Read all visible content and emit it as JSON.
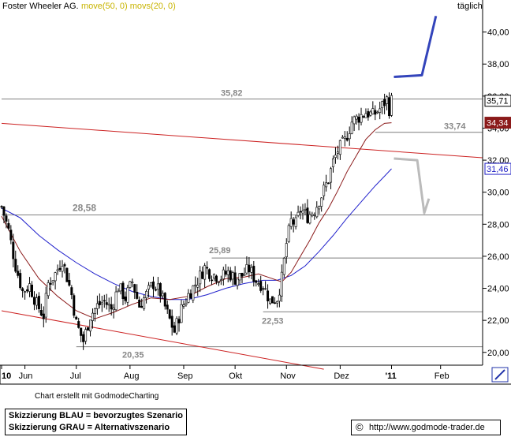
{
  "header": {
    "stock_name": "Foster Wheeler AG.",
    "indicators": "move(50, 0) movs(20, 0)",
    "interval": "täglich"
  },
  "credit": "Chart erstellt mit GodmodeCharting",
  "legend": {
    "blue": "Skizzierung BLAU = bevorzugtes Szenario",
    "gray": "Skizzierung GRAU = Alternativszenario"
  },
  "copyright": {
    "symbol": "©",
    "url": "http://www.godmode-trader.de"
  },
  "colors": {
    "candles": "#000000",
    "sma50": "#2222cc",
    "sma20": "#8b1a1a",
    "trendline": "#cc2222",
    "support": "#7f7f7f",
    "scenario_blue": "#3344bb",
    "scenario_gray": "#bbbbbb",
    "tag_price": "#000000",
    "tag_sma20": "#8b1a1a",
    "tag_sma50": "#1c1cc4"
  },
  "chart_data": {
    "type": "candlestick",
    "y_range": [
      19.2,
      42
    ],
    "y_ticks": [
      "20,00",
      "22,00",
      "24,00",
      "26,00",
      "28,00",
      "30,00",
      "32,00",
      "34,00",
      "36,00",
      "38,00",
      "40,00"
    ],
    "y_tick_values": [
      20,
      22,
      24,
      26,
      28,
      30,
      32,
      34,
      36,
      38,
      40
    ],
    "x_labels": [
      "10",
      "Jun",
      "Jul",
      "Aug",
      "Sep",
      "Okt",
      "Nov",
      "Dez",
      "'11",
      "Feb"
    ],
    "x_label_sessions": [
      0,
      10,
      32,
      55,
      78,
      100,
      122,
      145,
      167,
      188
    ],
    "sessions_total": 206,
    "price_tags": [
      {
        "text": "35,71",
        "value": 35.71,
        "role": "price"
      },
      {
        "text": "34,34",
        "value": 34.34,
        "role": "sma20"
      },
      {
        "text": "31,46",
        "value": 31.46,
        "role": "sma50"
      }
    ],
    "levels": [
      {
        "label": "35,82",
        "value": 35.82,
        "from_session": 0
      },
      {
        "label": "33,74",
        "value": 33.74,
        "from_session": 160
      },
      {
        "label": "28,58",
        "value": 28.58,
        "from_session": 0
      },
      {
        "label": "25,89",
        "value": 25.89,
        "from_session": 90
      },
      {
        "label": "22,53",
        "value": 22.53,
        "from_session": 112
      },
      {
        "label": "20,35",
        "value": 20.35,
        "from_session": 32
      }
    ],
    "trendlines": [
      {
        "name": "upper",
        "points": [
          [
            0,
            34.3
          ],
          [
            206,
            32.15
          ]
        ]
      },
      {
        "name": "lower",
        "points": [
          [
            0,
            22.6
          ],
          [
            138,
            18.95
          ]
        ]
      }
    ],
    "scenario_blue": [
      [
        168,
        37.2
      ],
      [
        180,
        37.3
      ],
      [
        186,
        41.0
      ]
    ],
    "scenario_gray": [
      [
        168,
        32.1
      ],
      [
        178,
        32.0
      ],
      [
        181,
        28.7
      ],
      [
        183,
        29.6
      ]
    ],
    "close_path": [
      [
        0,
        29.1
      ],
      [
        3,
        27.6
      ],
      [
        6,
        25.4
      ],
      [
        9,
        23.8
      ],
      [
        12,
        24.2
      ],
      [
        15,
        23.0
      ],
      [
        18,
        22.3
      ],
      [
        20,
        24.3
      ],
      [
        23,
        24.9
      ],
      [
        26,
        25.8
      ],
      [
        28,
        24.7
      ],
      [
        30,
        23.6
      ],
      [
        32,
        21.8
      ],
      [
        35,
        20.7
      ],
      [
        38,
        22.3
      ],
      [
        41,
        22.9
      ],
      [
        44,
        23.2
      ],
      [
        47,
        22.7
      ],
      [
        50,
        24.1
      ],
      [
        53,
        23.4
      ],
      [
        56,
        24.4
      ],
      [
        59,
        22.9
      ],
      [
        62,
        23.6
      ],
      [
        65,
        24.3
      ],
      [
        68,
        23.7
      ],
      [
        71,
        22.4
      ],
      [
        74,
        21.3
      ],
      [
        77,
        22.7
      ],
      [
        80,
        23.6
      ],
      [
        84,
        24.5
      ],
      [
        87,
        25.3
      ],
      [
        90,
        24.9
      ],
      [
        94,
        24.7
      ],
      [
        97,
        25.0
      ],
      [
        100,
        24.6
      ],
      [
        103,
        24.8
      ],
      [
        106,
        25.2
      ],
      [
        109,
        24.5
      ],
      [
        112,
        24.2
      ],
      [
        115,
        23.2
      ],
      [
        118,
        23.4
      ],
      [
        120,
        24.6
      ],
      [
        122,
        26.8
      ],
      [
        124,
        28.2
      ],
      [
        126,
        28.0
      ],
      [
        128,
        28.9
      ],
      [
        131,
        28.5
      ],
      [
        134,
        28.9
      ],
      [
        137,
        29.8
      ],
      [
        140,
        30.8
      ],
      [
        142,
        31.9
      ],
      [
        144,
        32.6
      ],
      [
        147,
        33.2
      ],
      [
        150,
        34.4
      ],
      [
        153,
        34.7
      ],
      [
        156,
        35.0
      ],
      [
        159,
        34.8
      ],
      [
        162,
        35.2
      ],
      [
        165,
        35.8
      ],
      [
        166,
        35.2
      ],
      [
        167,
        35.71
      ]
    ],
    "sma20_path": [
      [
        0,
        28.5
      ],
      [
        8,
        26.3
      ],
      [
        16,
        24.6
      ],
      [
        24,
        23.5
      ],
      [
        32,
        22.6
      ],
      [
        40,
        22.1
      ],
      [
        48,
        22.5
      ],
      [
        56,
        23.0
      ],
      [
        64,
        23.4
      ],
      [
        72,
        23.3
      ],
      [
        80,
        23.5
      ],
      [
        88,
        24.1
      ],
      [
        96,
        24.6
      ],
      [
        104,
        24.7
      ],
      [
        110,
        24.9
      ],
      [
        116,
        24.6
      ],
      [
        120,
        24.4
      ],
      [
        124,
        25.0
      ],
      [
        128,
        26.0
      ],
      [
        132,
        27.0
      ],
      [
        136,
        28.1
      ],
      [
        140,
        29.0
      ],
      [
        144,
        30.1
      ],
      [
        148,
        31.3
      ],
      [
        152,
        32.3
      ],
      [
        156,
        33.3
      ],
      [
        160,
        33.9
      ],
      [
        164,
        34.3
      ],
      [
        167,
        34.34
      ]
    ],
    "sma50_path": [
      [
        0,
        29.0
      ],
      [
        8,
        28.4
      ],
      [
        16,
        27.3
      ],
      [
        24,
        26.4
      ],
      [
        32,
        25.6
      ],
      [
        40,
        24.9
      ],
      [
        48,
        24.3
      ],
      [
        56,
        23.8
      ],
      [
        64,
        23.5
      ],
      [
        72,
        23.3
      ],
      [
        80,
        23.3
      ],
      [
        88,
        23.6
      ],
      [
        96,
        24.0
      ],
      [
        104,
        24.3
      ],
      [
        112,
        24.5
      ],
      [
        118,
        24.5
      ],
      [
        124,
        24.8
      ],
      [
        130,
        25.4
      ],
      [
        136,
        26.3
      ],
      [
        142,
        27.3
      ],
      [
        148,
        28.4
      ],
      [
        154,
        29.4
      ],
      [
        160,
        30.4
      ],
      [
        164,
        31.0
      ],
      [
        167,
        31.46
      ]
    ]
  }
}
